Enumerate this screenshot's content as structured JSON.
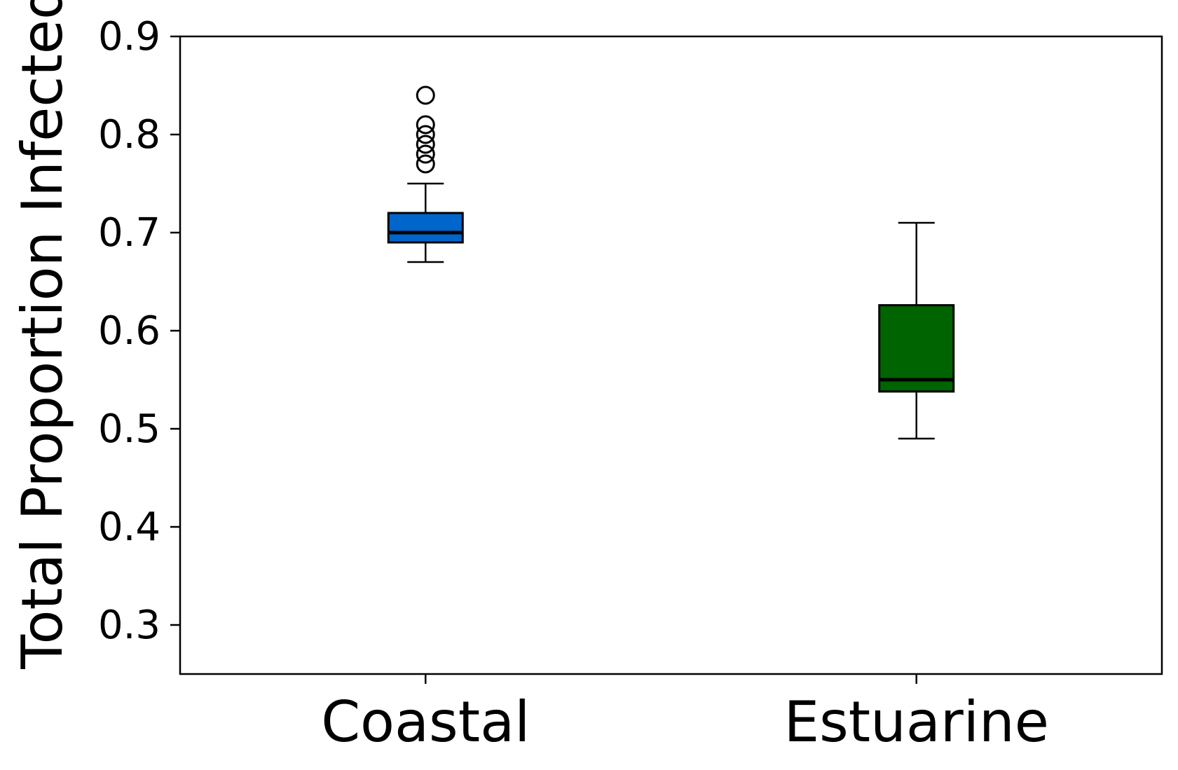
{
  "chart_data": {
    "type": "box",
    "title": "",
    "xlabel": "",
    "ylabel": "Total Proportion Infected",
    "ylim": [
      0.25,
      0.9
    ],
    "yticks": [
      0.3,
      0.4,
      0.5,
      0.6,
      0.7,
      0.8,
      0.9
    ],
    "ytick_labels": [
      "0.3",
      "0.4",
      "0.5",
      "0.6",
      "0.7",
      "0.8",
      "0.9"
    ],
    "grid": false,
    "categories": [
      "Coastal",
      "Estuarine"
    ],
    "boxes": [
      {
        "category": "Coastal",
        "color": "#0066cc",
        "whisker_low": 0.67,
        "q1": 0.69,
        "median": 0.7,
        "q3": 0.72,
        "whisker_high": 0.75,
        "outliers": [
          0.77,
          0.78,
          0.79,
          0.8,
          0.81,
          0.84
        ]
      },
      {
        "category": "Estuarine",
        "color": "#006400",
        "whisker_low": 0.49,
        "q1": 0.538,
        "median": 0.55,
        "q3": 0.626,
        "whisker_high": 0.71,
        "outliers": []
      }
    ]
  }
}
